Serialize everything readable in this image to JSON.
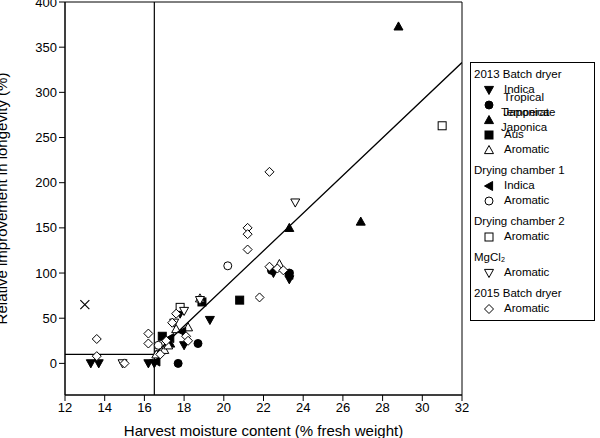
{
  "chart_data": {
    "type": "scatter",
    "x_label": "Harvest moisture content (% fresh weight)",
    "y_label": "Relative improvement in longevity (%)",
    "xlim": [
      12,
      32
    ],
    "ylim": [
      -35,
      400
    ],
    "xticks": [
      12,
      14,
      16,
      18,
      20,
      22,
      24,
      26,
      28,
      30,
      32
    ],
    "yticks": [
      0,
      50,
      100,
      150,
      200,
      250,
      300,
      350,
      400
    ],
    "legend": "right",
    "series": [
      {
        "group": "2013 Batch dryer",
        "name": "Indica",
        "marker": "triangle-down",
        "color": "#000000",
        "x": [
          13.3,
          13.7,
          16.2,
          16.5,
          17.8,
          18.0,
          19.3,
          22.5,
          23.3
        ],
        "values": [
          0,
          0,
          0,
          0,
          55,
          20,
          48,
          100,
          93
        ]
      },
      {
        "group": "2013 Batch dryer",
        "name": "Tropical Japonica",
        "marker": "circle",
        "color": "#000000",
        "x": [
          17.7,
          18.7,
          22.4,
          23.3
        ],
        "values": [
          0,
          22,
          103,
          100
        ]
      },
      {
        "group": "2013 Batch dryer",
        "name": "Temperate Japonica",
        "marker": "triangle",
        "color": "#000000",
        "x": [
          17.3,
          23.3,
          26.9,
          28.8
        ],
        "values": [
          22,
          150,
          157,
          373
        ]
      },
      {
        "group": "2013 Batch dryer",
        "name": "Aus",
        "marker": "square",
        "color": "#000000",
        "x": [
          16.9,
          18.9,
          20.8
        ],
        "values": [
          30,
          68,
          70
        ]
      },
      {
        "group": "2013 Batch dryer",
        "name": "Aromatic",
        "marker": "triangle-open",
        "color": "#000000",
        "x": [
          16.6,
          17.0,
          17.2,
          17.6,
          18.2,
          18.8,
          22.8
        ],
        "values": [
          10,
          15,
          20,
          38,
          40,
          72,
          110
        ]
      },
      {
        "group": "Drying chamber 1",
        "name": "Indica",
        "marker": "triangle-left",
        "color": "#000000",
        "x": [
          16.6,
          17.3,
          17.9,
          23.3
        ],
        "values": [
          2,
          28,
          35,
          98
        ]
      },
      {
        "group": "Drying chamber 1",
        "name": "Aromatic",
        "marker": "circle-open",
        "color": "#000000",
        "x": [
          16.7,
          20.2
        ],
        "values": [
          20,
          108
        ]
      },
      {
        "group": "Drying chamber 2",
        "name": "Aromatic",
        "marker": "square-open",
        "color": "#000000",
        "x": [
          17.8,
          31.0
        ],
        "values": [
          62,
          263
        ]
      },
      {
        "group": "MgCl₂",
        "name": "Aromatic",
        "marker": "triangle-down-open",
        "color": "#000000",
        "x": [
          14.9,
          17.5,
          18.0,
          18.8,
          23.6
        ],
        "values": [
          0,
          45,
          58,
          70,
          178
        ]
      },
      {
        "group": "2015 Batch dryer",
        "name": "Aromatic",
        "marker": "diamond-open",
        "color": "#000000",
        "x": [
          13.6,
          13.6,
          15.0,
          16.2,
          16.2,
          16.8,
          17.1,
          17.4,
          17.6,
          18.1,
          18.2,
          21.2,
          21.2,
          21.2,
          21.8,
          22.3,
          22.3,
          22.7,
          23.0
        ],
        "values": [
          27,
          8,
          0,
          33,
          22,
          10,
          25,
          45,
          55,
          30,
          25,
          150,
          143,
          126,
          73,
          212,
          107,
          105,
          103
        ]
      },
      {
        "marker": "x",
        "color": "#000000",
        "x": [
          13.0
        ],
        "values": [
          65
        ]
      }
    ],
    "fit_line": {
      "x": [
        12,
        16.5,
        32
      ],
      "values": [
        10,
        10,
        333
      ]
    },
    "threshold_x": 16.5
  }
}
